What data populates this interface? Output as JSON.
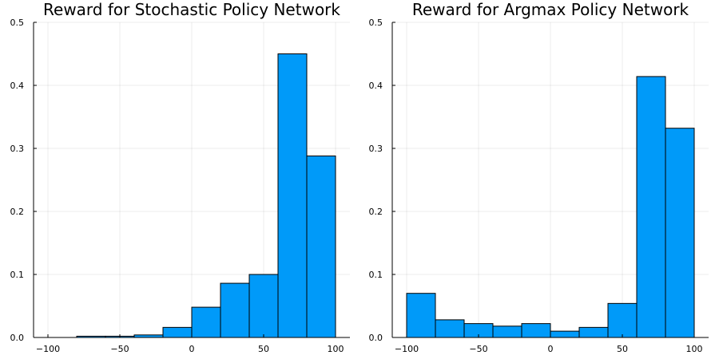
{
  "chart_data": [
    {
      "type": "bar",
      "title": "Reward for Stochastic Policy Network",
      "xlim": [
        -110,
        110
      ],
      "ylim": [
        0,
        0.5
      ],
      "x_ticks": [
        -100,
        -50,
        0,
        50,
        100
      ],
      "y_ticks": [
        0,
        0.1,
        0.2,
        0.3,
        0.4,
        0.5
      ],
      "x_tick_labels": [
        "−100",
        "−50",
        "0",
        "50",
        "100"
      ],
      "y_tick_labels": [
        "0.0",
        "0.1",
        "0.2",
        "0.3",
        "0.4",
        "0.5"
      ],
      "grid": true,
      "bin_edges": [
        -100,
        -80,
        -60,
        -40,
        -20,
        0,
        20,
        40,
        60,
        80,
        100
      ],
      "values": [
        0.0,
        0.002,
        0.002,
        0.004,
        0.016,
        0.048,
        0.086,
        0.1,
        0.45,
        0.288
      ],
      "color": "#009af9"
    },
    {
      "type": "bar",
      "title": "Reward for Argmax Policy Network",
      "xlim": [
        -110,
        110
      ],
      "ylim": [
        0,
        0.5
      ],
      "x_ticks": [
        -100,
        -50,
        0,
        50,
        100
      ],
      "y_ticks": [
        0,
        0.1,
        0.2,
        0.3,
        0.4,
        0.5
      ],
      "x_tick_labels": [
        "−100",
        "−50",
        "0",
        "50",
        "100"
      ],
      "y_tick_labels": [
        "0.0",
        "0.1",
        "0.2",
        "0.3",
        "0.4",
        "0.5"
      ],
      "grid": true,
      "bin_edges": [
        -100,
        -80,
        -60,
        -40,
        -20,
        0,
        20,
        40,
        60,
        80,
        100
      ],
      "values": [
        0.07,
        0.028,
        0.022,
        0.018,
        0.022,
        0.01,
        0.016,
        0.054,
        0.414,
        0.332
      ],
      "color": "#009af9"
    }
  ]
}
